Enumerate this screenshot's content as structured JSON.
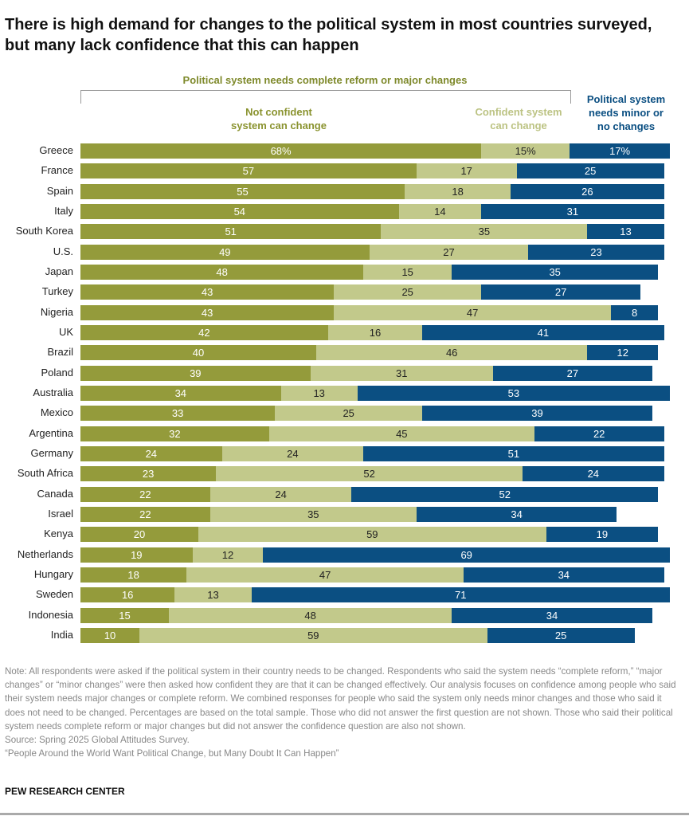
{
  "title": "There is high demand for changes to the political system in most countries surveyed, but many lack confidence that this can happen",
  "chart_data": {
    "type": "bar",
    "orientation": "horizontal",
    "stacked": true,
    "group_header": "Political system needs complete reform or major changes",
    "categories": [
      "Greece",
      "France",
      "Spain",
      "Italy",
      "South Korea",
      "U.S.",
      "Japan",
      "Turkey",
      "Nigeria",
      "UK",
      "Brazil",
      "Poland",
      "Australia",
      "Mexico",
      "Argentina",
      "Germany",
      "South Africa",
      "Canada",
      "Israel",
      "Kenya",
      "Netherlands",
      "Hungary",
      "Sweden",
      "Indonesia",
      "India"
    ],
    "series": [
      {
        "name": "Not confident system can change",
        "color": "#949b3b",
        "values": [
          68,
          57,
          55,
          54,
          51,
          49,
          48,
          43,
          43,
          42,
          40,
          39,
          34,
          33,
          32,
          24,
          23,
          22,
          22,
          20,
          19,
          18,
          16,
          15,
          10
        ]
      },
      {
        "name": "Confident system can change",
        "color": "#c2c98b",
        "values": [
          15,
          17,
          18,
          14,
          35,
          27,
          15,
          25,
          47,
          16,
          46,
          31,
          13,
          25,
          45,
          24,
          52,
          24,
          35,
          59,
          12,
          47,
          13,
          48,
          59
        ]
      },
      {
        "name": "Political system needs minor or no changes",
        "color": "#0b4f82",
        "values": [
          17,
          25,
          26,
          31,
          13,
          23,
          35,
          27,
          8,
          41,
          12,
          27,
          53,
          39,
          22,
          51,
          24,
          52,
          34,
          19,
          69,
          34,
          71,
          34,
          25
        ]
      }
    ],
    "series_label_lines": [
      [
        "Not confident",
        "system can change"
      ],
      [
        "Confident system",
        "can change"
      ],
      [
        "Political system",
        "needs minor or",
        "no changes"
      ]
    ],
    "first_row_suffix": "%",
    "xlim": [
      0,
      100
    ]
  },
  "note": "Note: All respondents were asked if the political system in their country needs to be changed. Respondents who said the system needs “complete reform,” “major changes” or “minor changes” were then asked how confident they are that it can be changed effectively. Our analysis focuses on confidence among people who said their system needs major changes or complete reform. We combined responses for people who said the system only needs minor changes and those who said it does not need to be changed. Percentages are based on the total sample. Those who did not answer the first question are not shown. Those who said their political system needs complete reform or major changes but did not answer the confidence question are also not shown.",
  "source": "Source: Spring 2025 Global Attitudes Survey.",
  "report": "“People Around the World Want Political Change, but Many Doubt It Can Happen”",
  "brand": "PEW RESEARCH CENTER"
}
